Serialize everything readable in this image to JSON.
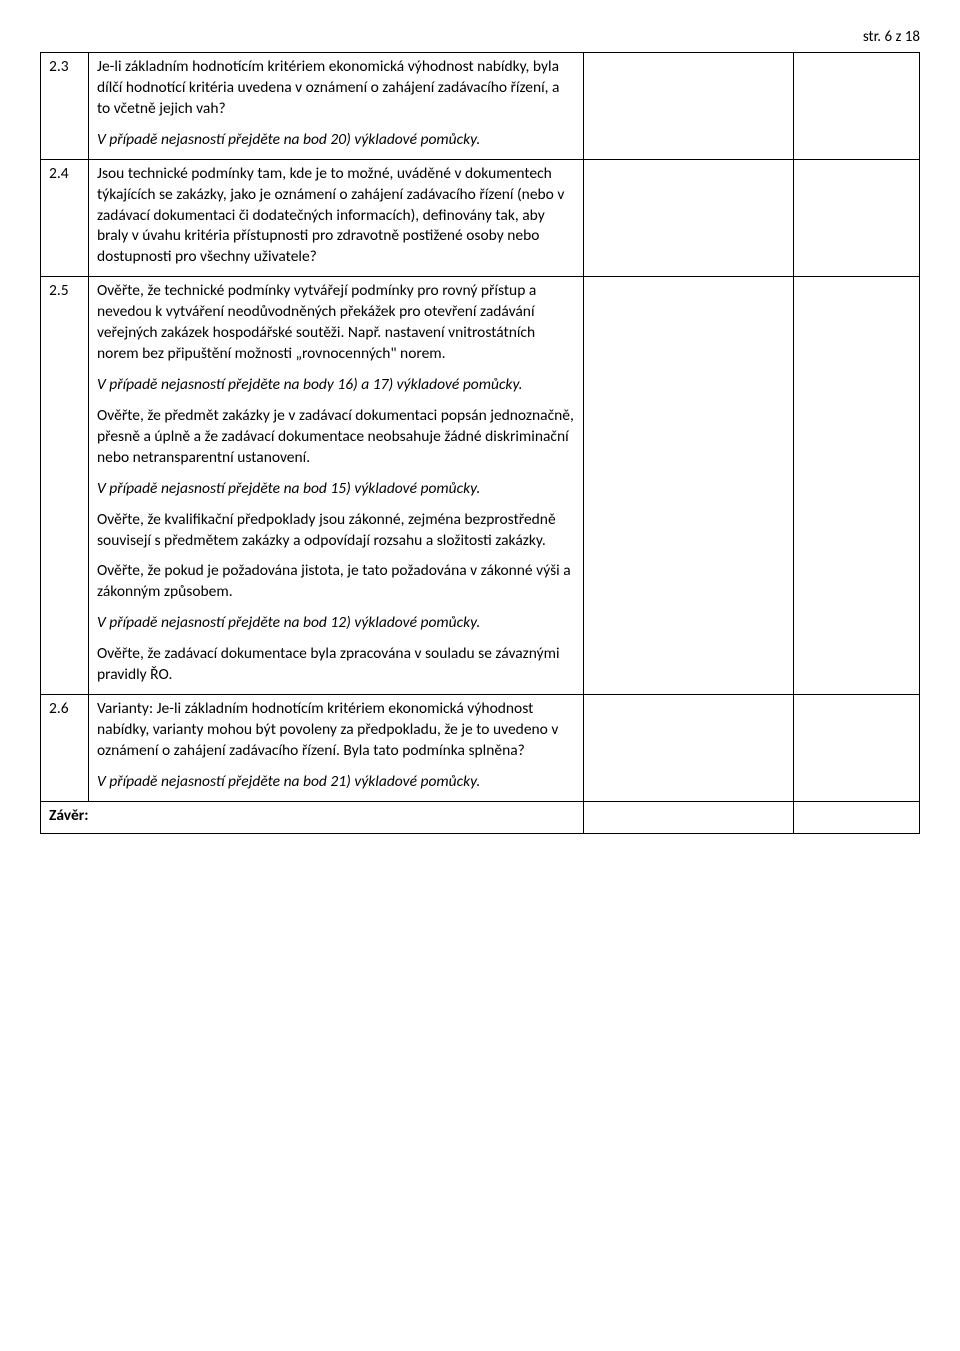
{
  "pageNumber": "str. 6 z 18",
  "rows": [
    {
      "num": "2.3",
      "paras": [
        {
          "text": "Je-li základním hodnotícím kritériem ekonomická výhodnost nabídky, byla dílčí hodnotící kritéria uvedena v oznámení o zahájení zadávacího řízení, a to včetně jejich vah?",
          "italic": false
        },
        {
          "text": "V případě nejasností přejděte na bod 20) výkladové pomůcky.",
          "italic": true
        }
      ]
    },
    {
      "num": "2.4",
      "paras": [
        {
          "text": "Jsou technické podmínky tam, kde je to možné, uváděné v dokumentech týkajících se zakázky, jako je oznámení o zahájení zadávacího řízení (nebo v zadávací dokumentaci či dodatečných informacích), definovány tak, aby braly v úvahu kritéria přístupnosti pro zdravotně postižené osoby nebo dostupnosti pro všechny uživatele?",
          "italic": false
        }
      ]
    },
    {
      "num": "2.5",
      "paras": [
        {
          "text": "Ověřte, že technické podmínky vytvářejí podmínky pro rovný přístup a nevedou k vytváření neodůvodněných překážek pro otevření zadávání veřejných zakázek hospodářské soutěži. Např. nastavení vnitrostátních norem bez připuštění možnosti „rovnocenných\" norem.",
          "italic": false
        },
        {
          "text": "V případě nejasností přejděte na body 16) a 17) výkladové pomůcky.",
          "italic": true
        },
        {
          "text": "Ověřte, že předmět zakázky je v zadávací dokumentaci popsán jednoznačně, přesně a úplně a že zadávací dokumentace neobsahuje žádné diskriminační nebo netransparentní ustanovení.",
          "italic": false
        },
        {
          "text": "V případě nejasností přejděte na bod 15) výkladové pomůcky.",
          "italic": true
        },
        {
          "text": "Ověřte, že kvalifikační předpoklady jsou zákonné, zejména bezprostředně souvisejí s předmětem zakázky a odpovídají rozsahu a složitosti zakázky.",
          "italic": false
        },
        {
          "text": "Ověřte, že pokud je požadována jistota, je tato požadována v zákonné výši a zákonným způsobem.",
          "italic": false
        },
        {
          "text": "V případě nejasností přejděte na bod 12) výkladové pomůcky.",
          "italic": true
        },
        {
          "text": "Ověřte, že zadávací dokumentace byla zpracována v souladu se závaznými pravidly ŘO.",
          "italic": false
        }
      ]
    },
    {
      "num": "2.6",
      "paras": [
        {
          "text": "Varianty: Je-li základním hodnotícím kritériem ekonomická výhodnost nabídky, varianty mohou být povoleny za předpokladu, že je to uvedeno v oznámení o zahájení zadávacího řízení. Byla tato podmínka splněna?",
          "italic": false
        },
        {
          "text": "V případě nejasností přejděte na bod 21) výkladové pomůcky.",
          "italic": true
        }
      ]
    }
  ],
  "conclusionLabel": "Závěr:"
}
